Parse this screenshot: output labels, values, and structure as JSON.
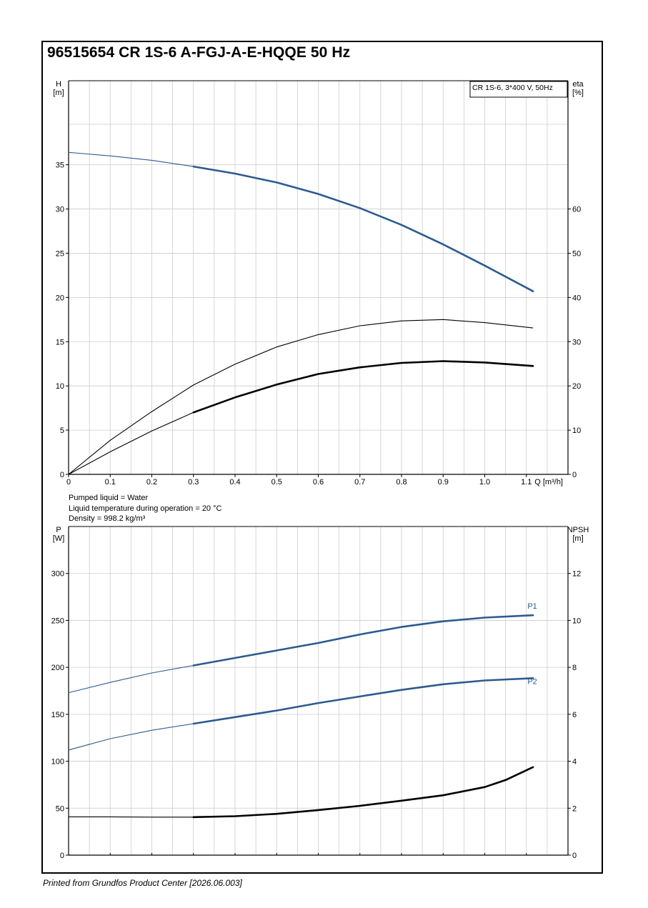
{
  "title": "96515654 CR 1S-6 A-FGJ-A-E-HQQE 50 Hz",
  "footer": "Printed from Grundfos Product Center [2026.06.003]",
  "notes": [
    "Pumped liquid = Water",
    "Liquid temperature during operation = 20 °C",
    "Density = 998.2 kg/m³"
  ],
  "colors": {
    "blue": "#2c5b8f",
    "grid": "#cccccc",
    "axis": "#000000"
  },
  "chart_data": [
    {
      "type": "line",
      "legend_box": "CR 1S-6, 3*400 V, 50Hz",
      "legend_placement": "top-right",
      "grid": true,
      "xlabel": "Q [m³/h]",
      "x_ticks": [
        "0",
        "0.1",
        "0.2",
        "0.3",
        "0.4",
        "0.5",
        "0.6",
        "0.7",
        "0.8",
        "0.9",
        "1.0",
        "1.1"
      ],
      "xlim": [
        0,
        1.2
      ],
      "y_left": {
        "label": [
          "H",
          "[m]"
        ],
        "ticks": [
          "0",
          "5",
          "10",
          "15",
          "20",
          "25",
          "30",
          "35"
        ],
        "lim": [
          0,
          44.5
        ]
      },
      "y_right": {
        "label": [
          "eta",
          "[%]"
        ],
        "ticks": [
          "0",
          "10",
          "20",
          "30",
          "40",
          "50",
          "60"
        ],
        "lim": [
          0,
          89
        ]
      },
      "series": [
        {
          "id": "H",
          "axis": "left",
          "color": "blue",
          "op_start": 0.3,
          "x": [
            0,
            0.1,
            0.2,
            0.3,
            0.4,
            0.5,
            0.6,
            0.7,
            0.8,
            0.9,
            1.0,
            1.116
          ],
          "y": [
            36.4,
            36.0,
            35.5,
            34.8,
            34.0,
            33.0,
            31.7,
            30.1,
            28.2,
            26.0,
            23.6,
            20.7
          ]
        },
        {
          "id": "eta-upper",
          "axis": "right",
          "color": "axis",
          "op_start": null,
          "x": [
            0,
            0.1,
            0.2,
            0.3,
            0.4,
            0.5,
            0.6,
            0.7,
            0.8,
            0.9,
            1.0,
            1.116
          ],
          "y": [
            0,
            7.7,
            14.2,
            20.2,
            24.9,
            28.8,
            31.6,
            33.6,
            34.7,
            35.0,
            34.3,
            33.1
          ]
        },
        {
          "id": "eta-lower",
          "axis": "right",
          "color": "axis",
          "op_start": 0.3,
          "x": [
            0,
            0.1,
            0.2,
            0.3,
            0.4,
            0.5,
            0.6,
            0.7,
            0.8,
            0.9,
            1.0,
            1.116
          ],
          "y": [
            0,
            5.1,
            9.8,
            14.0,
            17.4,
            20.3,
            22.7,
            24.2,
            25.2,
            25.6,
            25.3,
            24.5
          ]
        }
      ]
    },
    {
      "type": "line",
      "grid": true,
      "xlim": [
        0,
        1.2
      ],
      "y_left": {
        "label": [
          "P",
          "[W]"
        ],
        "ticks": [
          "0",
          "50",
          "100",
          "150",
          "200",
          "250",
          "300"
        ],
        "lim": [
          0,
          350
        ]
      },
      "y_right": {
        "label": [
          "NPSH",
          "[m]"
        ],
        "ticks": [
          "0",
          "2",
          "4",
          "6",
          "8",
          "10",
          "12"
        ],
        "lim": [
          0,
          14
        ]
      },
      "series": [
        {
          "id": "P1",
          "name": "P1",
          "axis": "left",
          "color": "blue",
          "op_start": 0.3,
          "x": [
            0,
            0.1,
            0.2,
            0.3,
            0.4,
            0.5,
            0.6,
            0.7,
            0.8,
            0.9,
            1.0,
            1.116
          ],
          "y": [
            173,
            184,
            194,
            202,
            210,
            218,
            226,
            235,
            243,
            249,
            253,
            255.5
          ]
        },
        {
          "id": "P2",
          "name": "P2",
          "axis": "left",
          "color": "blue",
          "op_start": 0.3,
          "x": [
            0,
            0.1,
            0.2,
            0.3,
            0.4,
            0.5,
            0.6,
            0.7,
            0.8,
            0.9,
            1.0,
            1.116
          ],
          "y": [
            112,
            124,
            133,
            140,
            147,
            154,
            162,
            169,
            176,
            182,
            186,
            188.5
          ]
        },
        {
          "id": "NPSH",
          "axis": "right",
          "color": "axis",
          "op_start": 0.3,
          "x": [
            0,
            0.1,
            0.2,
            0.3,
            0.4,
            0.5,
            0.6,
            0.7,
            0.8,
            0.9,
            1.0,
            1.05,
            1.116
          ],
          "y": [
            1.63,
            1.63,
            1.62,
            1.62,
            1.66,
            1.76,
            1.92,
            2.1,
            2.32,
            2.55,
            2.9,
            3.2,
            3.75
          ]
        }
      ]
    }
  ]
}
